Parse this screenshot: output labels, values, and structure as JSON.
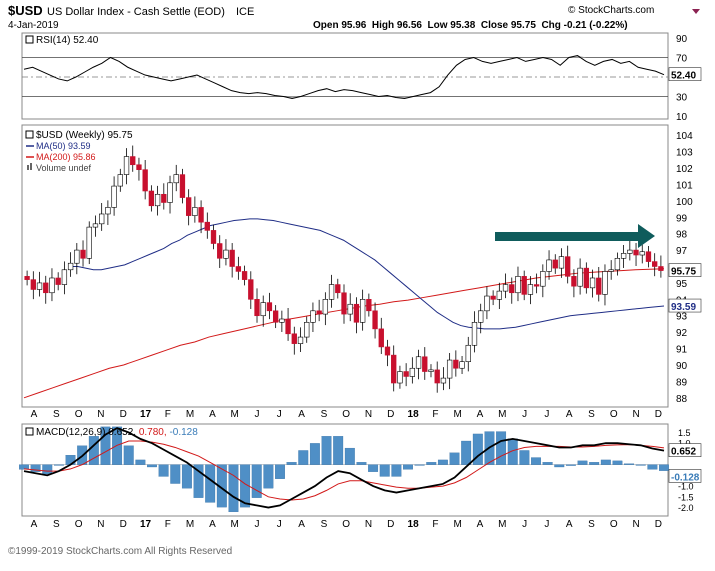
{
  "header": {
    "symbol": "$USD",
    "name": "US Dollar Index - Cash Settle (EOD)",
    "exchange": "ICE",
    "date": "4-Jan-2019",
    "brand": "© StockCharts.com",
    "ohlc_line": "Open 95.96  High 96.56  Low 95.38  Close 95.75  Chg -0.21 (-0.22%)",
    "copyright": "©1999-2019 StockCharts.com All Rights Reserved"
  },
  "colors": {
    "up": "#ffffff",
    "down": "#c8102e",
    "wick": "#000000",
    "ma50": "#1f2d86",
    "ma200": "#d21919",
    "arrow": "#0f5c5c",
    "macd": "#000000",
    "signal": "#d21919",
    "hist": "#4f8fc6"
  },
  "chart_data": [
    {
      "type": "line",
      "title": "RSI(14) 52.40",
      "series": [
        {
          "name": "RSI(14)",
          "values": [
            58,
            60,
            56,
            52,
            48,
            46,
            50,
            55,
            60,
            64,
            70,
            66,
            60,
            56,
            52,
            50,
            48,
            46,
            48,
            50,
            52,
            48,
            44,
            40,
            36,
            34,
            33,
            34,
            33,
            31,
            30,
            28,
            30,
            33,
            36,
            38,
            35,
            37,
            36,
            34,
            32,
            30,
            31,
            29,
            28,
            30,
            32,
            34,
            40,
            52,
            62,
            68,
            70,
            66,
            64,
            66,
            68,
            70,
            66,
            68,
            70,
            68,
            62,
            70,
            72,
            66,
            62,
            66,
            68,
            64,
            66,
            60,
            58,
            56,
            52.4
          ]
        }
      ],
      "hlines": [
        70,
        50,
        30
      ],
      "ylim": [
        10,
        90
      ],
      "ticks": [
        90,
        70,
        50,
        30,
        10
      ],
      "last_value_label": "52.40"
    },
    {
      "type": "candlestick",
      "title": "$USD (Weekly) 95.75",
      "legend": [
        "$USD (Weekly) 95.75",
        "MA(50) 93.59",
        "MA(200) 95.86",
        "Volume undef"
      ],
      "ylim": [
        87.5,
        104.5
      ],
      "ticks": [
        104,
        103,
        102,
        101,
        100,
        99,
        98,
        97,
        96,
        95,
        94,
        93,
        92,
        91,
        90,
        89,
        88
      ],
      "x_labels": [
        "A",
        "S",
        "O",
        "N",
        "D",
        "17",
        "F",
        "M",
        "A",
        "M",
        "J",
        "J",
        "A",
        "S",
        "O",
        "N",
        "D",
        "18",
        "F",
        "M",
        "A",
        "M",
        "J",
        "J",
        "A",
        "S",
        "O",
        "N",
        "D"
      ],
      "closes": [
        95.2,
        94.6,
        95.0,
        94.4,
        95.3,
        94.9,
        95.8,
        96.2,
        97.0,
        96.5,
        98.4,
        98.6,
        99.2,
        99.6,
        100.9,
        101.6,
        102.7,
        102.2,
        101.9,
        100.6,
        99.7,
        100.4,
        99.9,
        101.1,
        101.6,
        100.2,
        99.1,
        99.6,
        98.7,
        98.2,
        97.4,
        96.5,
        97.0,
        96.0,
        95.7,
        95.2,
        94.0,
        93.0,
        93.8,
        93.3,
        92.6,
        92.8,
        91.9,
        91.3,
        91.7,
        92.6,
        93.3,
        93.1,
        94.0,
        94.9,
        94.4,
        93.1,
        93.7,
        92.6,
        94.0,
        93.3,
        92.2,
        91.1,
        90.6,
        88.9,
        89.6,
        89.3,
        89.8,
        90.5,
        89.6,
        89.7,
        88.9,
        89.2,
        90.3,
        89.8,
        90.2,
        91.2,
        92.6,
        93.3,
        94.2,
        94.0,
        94.5,
        94.9,
        94.4,
        95.4,
        94.3,
        94.9,
        94.8,
        95.7,
        96.4,
        95.9,
        96.6,
        95.4,
        94.8,
        95.9,
        94.7,
        95.3,
        94.3,
        95.7,
        95.8,
        96.5,
        96.8,
        97.0,
        96.7,
        96.9,
        96.3,
        96.0,
        95.75
      ],
      "ma50": [
        96.0,
        96.0,
        95.9,
        95.8,
        95.8,
        95.9,
        96.0,
        96.1,
        96.3,
        96.5,
        96.7,
        96.9,
        97.1,
        97.4,
        97.6,
        97.9,
        98.1,
        98.3,
        98.5,
        98.6,
        98.7,
        98.8,
        98.85,
        98.9,
        98.9,
        98.85,
        98.8,
        98.7,
        98.6,
        98.5,
        98.4,
        98.3,
        98.2,
        98.0,
        97.8,
        97.6,
        97.3,
        97.0,
        96.7,
        96.4,
        96.0,
        95.6,
        95.2,
        94.8,
        94.4,
        94.0,
        93.6,
        93.2,
        92.9,
        92.6,
        92.4,
        92.3,
        92.25,
        92.2,
        92.2,
        92.2,
        92.25,
        92.3,
        92.4,
        92.5,
        92.6,
        92.7,
        92.8,
        92.9,
        93.0,
        93.05,
        93.1,
        93.15,
        93.2,
        93.25,
        93.3,
        93.35,
        93.4,
        93.45,
        93.5,
        93.55,
        93.59
      ],
      "ma200": [
        88.0,
        88.3,
        88.6,
        88.9,
        89.2,
        89.5,
        89.8,
        90.0,
        90.3,
        90.6,
        90.9,
        91.2,
        91.4,
        91.7,
        91.9,
        92.1,
        92.3,
        92.5,
        92.7,
        92.85,
        93.0,
        93.15,
        93.3,
        93.45,
        93.6,
        93.7,
        93.85,
        93.95,
        94.1,
        94.25,
        94.4,
        94.55,
        94.7,
        94.85,
        95.0,
        95.15,
        95.3,
        95.4,
        95.5,
        95.6,
        95.65,
        95.7,
        95.75,
        95.8,
        95.83,
        95.86
      ],
      "last_value_label": "95.75",
      "ma50_label": "93.59"
    },
    {
      "type": "line",
      "title": "MACD(12,26,9) 0.652, 0.780, -0.128",
      "legend_parts": [
        "MACD(12,26,9) 0.652,",
        "0.780,",
        "-0.128"
      ],
      "series": [
        {
          "name": "MACD",
          "values": [
            -0.3,
            -0.4,
            -0.5,
            -0.3,
            0.0,
            0.4,
            0.9,
            1.4,
            1.7,
            1.5,
            1.2,
            1.0,
            0.7,
            0.4,
            0.1,
            -0.3,
            -0.7,
            -1.1,
            -1.5,
            -1.8,
            -1.9,
            -2.0,
            -1.9,
            -1.6,
            -1.3,
            -1.0,
            -0.6,
            -0.3,
            -0.4,
            -0.7,
            -1.0,
            -1.2,
            -1.3,
            -1.2,
            -1.1,
            -1.0,
            -0.9,
            -0.6,
            -0.1,
            0.4,
            0.8,
            1.1,
            1.2,
            1.1,
            1.0,
            0.9,
            0.8,
            0.8,
            0.9,
            0.9,
            1.0,
            1.0,
            0.95,
            0.9,
            0.75,
            0.652
          ]
        },
        {
          "name": "Signal",
          "values": [
            -0.2,
            -0.25,
            -0.3,
            -0.3,
            -0.2,
            0.0,
            0.3,
            0.6,
            0.9,
            1.1,
            1.1,
            1.05,
            0.95,
            0.8,
            0.6,
            0.4,
            0.1,
            -0.2,
            -0.5,
            -0.9,
            -1.2,
            -1.5,
            -1.6,
            -1.65,
            -1.6,
            -1.45,
            -1.2,
            -0.9,
            -0.75,
            -0.75,
            -0.85,
            -0.95,
            -1.05,
            -1.1,
            -1.1,
            -1.05,
            -1.0,
            -0.85,
            -0.6,
            -0.25,
            0.1,
            0.4,
            0.65,
            0.8,
            0.85,
            0.85,
            0.85,
            0.82,
            0.82,
            0.85,
            0.9,
            0.92,
            0.93,
            0.9,
            0.85,
            0.78
          ]
        }
      ],
      "ylim": [
        -2.3,
        1.8
      ],
      "ticks": [
        1.5,
        1.0,
        0.5,
        0.0,
        -0.5,
        -1.0,
        -1.5,
        -2.0
      ],
      "last_values": [
        "0.652",
        "-0.128"
      ],
      "x_labels": [
        "A",
        "S",
        "O",
        "N",
        "D",
        "17",
        "F",
        "M",
        "A",
        "M",
        "J",
        "J",
        "A",
        "S",
        "O",
        "N",
        "D",
        "18",
        "F",
        "M",
        "A",
        "M",
        "J",
        "J",
        "A",
        "S",
        "O",
        "N",
        "D"
      ]
    }
  ]
}
